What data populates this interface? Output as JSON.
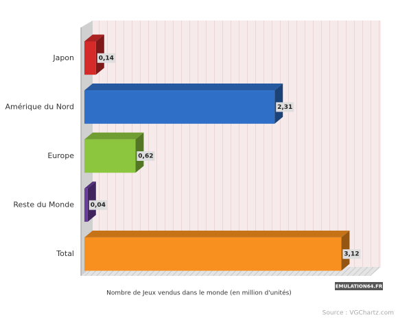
{
  "chart_data": {
    "type": "bar",
    "orientation": "horizontal",
    "categories": [
      "Japon",
      "Amérique du Nord",
      "Europe",
      "Reste du Monde",
      "Total"
    ],
    "values": [
      0.14,
      2.31,
      0.62,
      0.04,
      3.12
    ],
    "value_labels": [
      "0,14",
      "2,31",
      "0,62",
      "0,04",
      "3,12"
    ],
    "colors": [
      "#d42a2a",
      "#2f6fc8",
      "#8cc63e",
      "#6a3c9c",
      "#f7901e"
    ],
    "xlim": [
      0,
      3.5
    ],
    "xlabel": "Nombre de Jeux vendus dans le monde (en million d'unités)",
    "watermark": "EMULATION64.FR",
    "source": "Source : VGChartz.com"
  }
}
